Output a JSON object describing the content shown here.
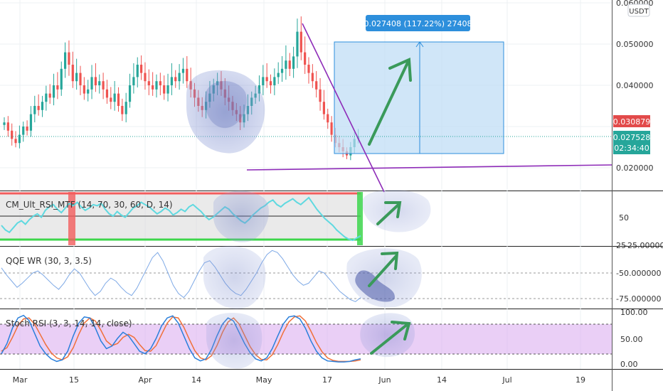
{
  "chart_data": [
    {
      "type": "candlestick",
      "pair_badge": "USDT",
      "yticks": [
        "0.060000",
        "0.050000",
        "0.040000",
        "0.020000"
      ],
      "ylim": [
        0.0125,
        0.0625
      ],
      "last_price": "0.027528",
      "countdown": "02:34:40",
      "marked_price": "0.030879",
      "measure_label": "0.027408 (117.22%) 27408",
      "series_close": [
        0.031,
        0.029,
        0.027,
        0.026,
        0.028,
        0.03,
        0.029,
        0.033,
        0.035,
        0.034,
        0.036,
        0.038,
        0.037,
        0.04,
        0.039,
        0.044,
        0.048,
        0.045,
        0.041,
        0.043,
        0.04,
        0.038,
        0.039,
        0.042,
        0.04,
        0.041,
        0.039,
        0.037,
        0.036,
        0.038,
        0.035,
        0.033,
        0.036,
        0.04,
        0.042,
        0.045,
        0.043,
        0.041,
        0.04,
        0.039,
        0.041,
        0.04,
        0.038,
        0.04,
        0.042,
        0.041,
        0.043,
        0.044,
        0.041,
        0.039,
        0.037,
        0.035,
        0.034,
        0.036,
        0.038,
        0.04,
        0.041,
        0.039,
        0.037,
        0.036,
        0.034,
        0.033,
        0.031,
        0.033,
        0.035,
        0.037,
        0.038,
        0.04,
        0.042,
        0.041,
        0.04,
        0.042,
        0.043,
        0.044,
        0.046,
        0.044,
        0.047,
        0.053,
        0.048,
        0.045,
        0.043,
        0.041,
        0.039,
        0.036,
        0.033,
        0.031,
        0.028,
        0.026,
        0.025,
        0.024,
        0.023,
        0.025,
        0.027,
        0.0275
      ]
    },
    {
      "type": "line",
      "label": "CM_Ult_RSI_MTF (14, 70, 30, 60, D, 14)",
      "yticks": [
        "50",
        "25"
      ],
      "values": [
        42,
        38,
        36,
        40,
        44,
        46,
        43,
        47,
        50,
        52,
        49,
        55,
        58,
        60,
        56,
        53,
        57,
        61,
        59,
        62,
        58,
        55,
        57,
        60,
        59,
        61,
        56,
        52,
        50,
        54,
        51,
        49,
        53,
        57,
        59,
        62,
        60,
        58,
        55,
        52,
        54,
        57,
        55,
        51,
        53,
        56,
        54,
        58,
        60,
        57,
        54,
        50,
        47,
        49,
        52,
        55,
        58,
        56,
        52,
        49,
        46,
        44,
        47,
        51,
        54,
        57,
        59,
        62,
        64,
        60,
        58,
        61,
        63,
        65,
        62,
        60,
        63,
        66,
        61,
        56,
        52,
        48,
        45,
        42,
        38,
        35,
        32,
        30,
        29,
        31,
        33
      ]
    },
    {
      "type": "line",
      "label": "QQE WR (30, 3, 3.5)",
      "yticks": [
        "-25.000000",
        "-50.000000",
        "-75.000000"
      ],
      "values": [
        -45,
        -52,
        -58,
        -64,
        -60,
        -55,
        -50,
        -48,
        -52,
        -57,
        -62,
        -66,
        -60,
        -52,
        -46,
        -50,
        -58,
        -66,
        -72,
        -68,
        -60,
        -55,
        -58,
        -64,
        -69,
        -72,
        -65,
        -55,
        -45,
        -35,
        -30,
        -38,
        -50,
        -62,
        -70,
        -74,
        -68,
        -58,
        -48,
        -40,
        -38,
        -44,
        -52,
        -60,
        -66,
        -70,
        -72,
        -66,
        -58,
        -50,
        -40,
        -32,
        -28,
        -30,
        -36,
        -44,
        -52,
        -58,
        -62,
        -60,
        -54,
        -48,
        -50,
        -56,
        -62,
        -68,
        -72,
        -76,
        -78,
        -74
      ]
    },
    {
      "type": "line",
      "label": "Stoch RSI (3, 3, 14, 14, close)",
      "yticks": [
        "100.00",
        "50.00",
        "0.00"
      ],
      "k": [
        20,
        40,
        70,
        90,
        95,
        85,
        60,
        35,
        20,
        10,
        5,
        8,
        25,
        55,
        80,
        92,
        90,
        70,
        45,
        30,
        35,
        50,
        62,
        55,
        40,
        25,
        20,
        30,
        50,
        75,
        90,
        94,
        80,
        55,
        30,
        12,
        6,
        10,
        28,
        55,
        78,
        90,
        84,
        62,
        40,
        22,
        10,
        6,
        12,
        30,
        55,
        78,
        92,
        94,
        88,
        70,
        45,
        25,
        12,
        6,
        5,
        4,
        4,
        5,
        8,
        10
      ],
      "d": [
        25,
        32,
        52,
        75,
        88,
        90,
        78,
        58,
        38,
        22,
        12,
        8,
        14,
        32,
        58,
        80,
        90,
        84,
        66,
        45,
        36,
        40,
        52,
        58,
        52,
        38,
        26,
        25,
        36,
        58,
        80,
        92,
        90,
        72,
        48,
        26,
        12,
        8,
        16,
        36,
        62,
        82,
        90,
        78,
        56,
        34,
        18,
        9,
        8,
        18,
        38,
        62,
        82,
        92,
        94,
        84,
        64,
        42,
        24,
        12,
        7,
        5,
        5,
        5,
        6,
        8
      ]
    }
  ],
  "xaxis": {
    "ticks": [
      "Mar",
      "15",
      "Apr",
      "14",
      "May",
      "17",
      "Jun",
      "14",
      "Jul",
      "19"
    ]
  }
}
